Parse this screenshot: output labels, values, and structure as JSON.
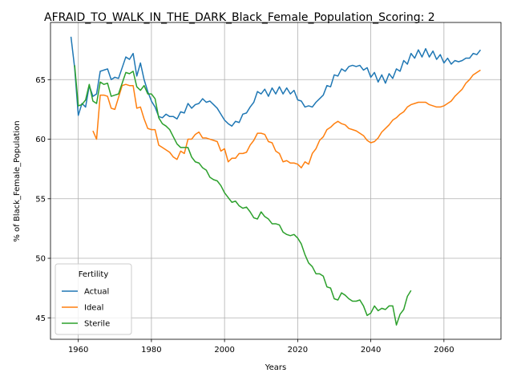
{
  "chart_data": {
    "type": "line",
    "title": "AFRAID_TO_WALK_IN_THE_DARK_Black_Female_Population_Scoring: 2",
    "xlabel": "Years",
    "ylabel": "% of Black_Female_Population",
    "legend_title": "Fertility",
    "legend": "lower left",
    "grid": true,
    "xlim": [
      1952.4,
      2075.6
    ],
    "ylim": [
      43.2,
      69.8
    ],
    "xticks": [
      1960,
      1980,
      2000,
      2020,
      2040,
      2060
    ],
    "yticks": [
      45,
      50,
      55,
      60,
      65
    ],
    "x": [
      1958,
      1959,
      1960,
      1961,
      1962,
      1963,
      1964,
      1965,
      1966,
      1967,
      1968,
      1969,
      1970,
      1971,
      1972,
      1973,
      1974,
      1975,
      1976,
      1977,
      1978,
      1979,
      1980,
      1981,
      1982,
      1983,
      1984,
      1985,
      1986,
      1987,
      1988,
      1989,
      1990,
      1991,
      1992,
      1993,
      1994,
      1995,
      1996,
      1997,
      1998,
      1999,
      2000,
      2001,
      2002,
      2003,
      2004,
      2005,
      2006,
      2007,
      2008,
      2009,
      2010,
      2011,
      2012,
      2013,
      2014,
      2015,
      2016,
      2017,
      2018,
      2019,
      2020,
      2021,
      2022,
      2023,
      2024,
      2025,
      2026,
      2027,
      2028,
      2029,
      2030,
      2031,
      2032,
      2033,
      2034,
      2035,
      2036,
      2037,
      2038,
      2039,
      2040,
      2041,
      2042,
      2043,
      2044,
      2045,
      2046,
      2047,
      2048,
      2049,
      2050,
      2051,
      2052,
      2053,
      2054,
      2055,
      2056,
      2057,
      2058,
      2059,
      2060,
      2061,
      2062,
      2063,
      2064,
      2065,
      2066,
      2067,
      2068,
      2069,
      2070
    ],
    "series": [
      {
        "name": "Actual",
        "color": "#1f77b4",
        "values": [
          68.6,
          66.0,
          62.0,
          63.0,
          62.7,
          64.5,
          63.6,
          63.8,
          65.7,
          65.8,
          65.9,
          65.0,
          65.2,
          65.1,
          66.0,
          66.9,
          66.7,
          67.2,
          65.3,
          66.4,
          65.0,
          64.0,
          63.2,
          62.7,
          61.9,
          61.8,
          62.1,
          61.9,
          61.9,
          61.7,
          62.3,
          62.2,
          63.0,
          62.6,
          62.9,
          63.0,
          63.4,
          63.1,
          63.2,
          62.9,
          62.6,
          62.1,
          61.6,
          61.3,
          61.1,
          61.5,
          61.4,
          62.1,
          62.2,
          62.7,
          63.1,
          64.0,
          63.8,
          64.2,
          63.6,
          64.3,
          63.8,
          64.4,
          63.8,
          64.3,
          63.8,
          64.1,
          63.3,
          63.2,
          62.7,
          62.8,
          62.7,
          63.1,
          63.4,
          63.7,
          64.5,
          64.4,
          65.4,
          65.3,
          65.9,
          65.7,
          66.1,
          66.2,
          66.1,
          66.2,
          65.8,
          66.0,
          65.2,
          65.6,
          64.8,
          65.4,
          64.7,
          65.5,
          65.1,
          65.9,
          65.7,
          66.6,
          66.3,
          67.2,
          66.8,
          67.5,
          66.9,
          67.6,
          66.9,
          67.4,
          66.7,
          67.1,
          66.4,
          66.8,
          66.3,
          66.6,
          66.5,
          66.6,
          66.8,
          66.8,
          67.2,
          67.1,
          67.5
        ]
      },
      {
        "name": "Ideal",
        "color": "#ff7f0e",
        "values": [
          null,
          null,
          null,
          null,
          null,
          null,
          60.7,
          60.0,
          63.7,
          63.7,
          63.6,
          62.6,
          62.5,
          63.5,
          64.5,
          64.6,
          64.5,
          64.5,
          62.6,
          62.7,
          61.7,
          60.9,
          60.8,
          60.8,
          59.5,
          59.3,
          59.1,
          58.9,
          58.5,
          58.3,
          59.0,
          58.8,
          60.0,
          60.0,
          60.4,
          60.6,
          60.1,
          60.1,
          60.0,
          59.9,
          59.8,
          59.0,
          59.2,
          58.1,
          58.4,
          58.4,
          58.8,
          58.8,
          58.9,
          59.5,
          59.9,
          60.5,
          60.5,
          60.4,
          59.8,
          59.7,
          59.0,
          58.8,
          58.1,
          58.2,
          58.0,
          58.0,
          57.9,
          57.6,
          58.1,
          57.9,
          58.8,
          59.2,
          59.9,
          60.2,
          60.8,
          61.0,
          61.3,
          61.5,
          61.3,
          61.2,
          60.9,
          60.8,
          60.7,
          60.5,
          60.3,
          59.9,
          59.7,
          59.8,
          60.1,
          60.6,
          60.9,
          61.2,
          61.6,
          61.8,
          62.1,
          62.3,
          62.7,
          62.9,
          63.0,
          63.1,
          63.1,
          63.1,
          62.9,
          62.8,
          62.7,
          62.7,
          62.8,
          63.0,
          63.2,
          63.6,
          63.9,
          64.2,
          64.7,
          65.0,
          65.4,
          65.6,
          65.8
        ]
      },
      {
        "name": "Sterile",
        "color": "#2ca02c",
        "values": [
          null,
          66.2,
          62.8,
          62.9,
          63.3,
          64.6,
          63.2,
          63.0,
          64.8,
          64.6,
          64.7,
          63.6,
          63.7,
          63.8,
          64.7,
          65.6,
          65.5,
          65.7,
          64.4,
          64.1,
          64.5,
          63.8,
          63.8,
          63.4,
          61.8,
          61.3,
          61.1,
          60.8,
          60.2,
          59.6,
          59.3,
          59.3,
          59.3,
          58.5,
          58.1,
          58.0,
          57.6,
          57.4,
          56.8,
          56.6,
          56.5,
          56.1,
          55.5,
          55.1,
          54.7,
          54.8,
          54.4,
          54.2,
          54.3,
          53.9,
          53.4,
          53.3,
          53.9,
          53.5,
          53.3,
          52.9,
          52.9,
          52.8,
          52.2,
          52.0,
          51.9,
          52.0,
          51.7,
          51.2,
          50.3,
          49.6,
          49.3,
          48.7,
          48.7,
          48.5,
          47.6,
          47.5,
          46.6,
          46.5,
          47.1,
          46.9,
          46.6,
          46.4,
          46.4,
          46.5,
          46.0,
          45.2,
          45.4,
          46.0,
          45.6,
          45.8,
          45.7,
          46.0,
          46.0,
          44.4,
          45.3,
          45.7,
          46.8,
          47.3,
          null,
          null,
          null,
          null,
          null,
          null,
          null,
          null,
          null,
          null,
          null,
          null,
          null,
          null,
          null,
          null,
          null,
          null,
          null
        ]
      }
    ]
  }
}
